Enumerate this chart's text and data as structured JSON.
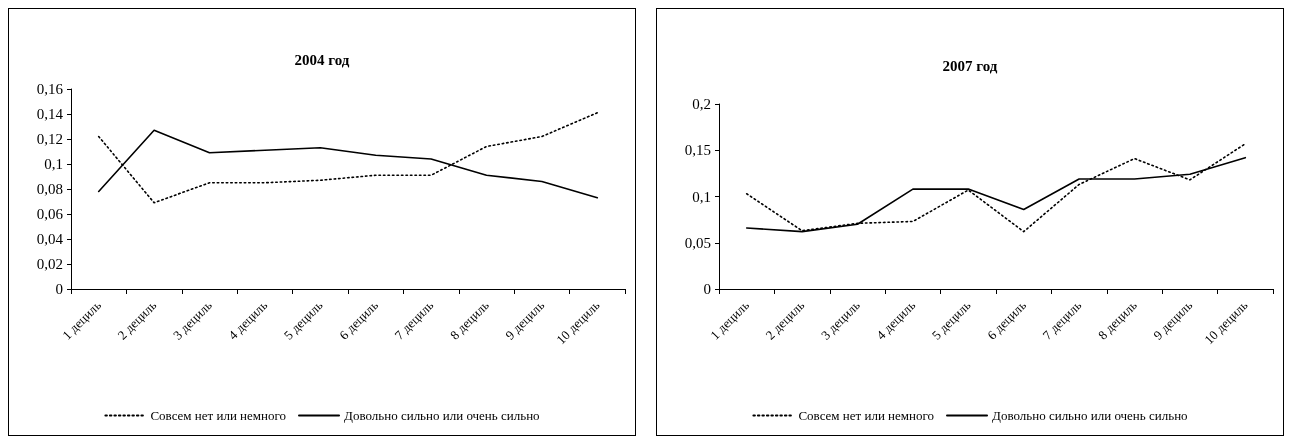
{
  "chart_data": [
    {
      "type": "line",
      "title": "2004 год",
      "categories": [
        "1 дециль",
        "2 дециль",
        "3 дециль",
        "4 дециль",
        "5 дециль",
        "6 дециль",
        "7 дециль",
        "8 дециль",
        "9 дециль",
        "10 дециль"
      ],
      "series": [
        {
          "name": "Совсем нет или немного",
          "color": "#000000",
          "line_style": "dotted",
          "values": [
            0.122,
            0.069,
            0.085,
            0.085,
            0.087,
            0.091,
            0.091,
            0.114,
            0.122,
            0.141
          ]
        },
        {
          "name": "Довольно сильно или очень сильно",
          "color": "#000000",
          "line_style": "solid",
          "values": [
            0.078,
            0.127,
            0.109,
            0.111,
            0.113,
            0.107,
            0.104,
            0.091,
            0.086,
            0.073
          ]
        }
      ],
      "ylim": [
        0,
        0.16
      ],
      "yticks": [
        0,
        {
          "value": 0.02,
          "label": "0,02"
        },
        {
          "value": 0.04,
          "label": "0,04"
        },
        {
          "value": 0.06,
          "label": "0,06"
        },
        {
          "value": 0.08,
          "label": "0,08"
        },
        {
          "value": 0.1,
          "label": "0,1"
        },
        {
          "value": 0.12,
          "label": "0,12"
        },
        {
          "value": 0.14,
          "label": "0,14"
        },
        {
          "value": 0.16,
          "label": "0,16"
        }
      ],
      "grid": false,
      "legend": "bottom",
      "marker": "none"
    },
    {
      "type": "line",
      "title": "2007 год",
      "categories": [
        "1 дециль",
        "2 дециль",
        "3 дециль",
        "4 дециль",
        "5 дециль",
        "6 дециль",
        "7 дециль",
        "8 дециль",
        "9 дециль",
        "10 дециль"
      ],
      "series": [
        {
          "name": "Совсем нет или немного",
          "color": "#000000",
          "line_style": "dotted",
          "values": [
            0.103,
            0.063,
            0.071,
            0.073,
            0.107,
            0.062,
            0.113,
            0.141,
            0.118,
            0.157
          ]
        },
        {
          "name": "Довольно сильно или очень сильно",
          "color": "#000000",
          "line_style": "solid",
          "values": [
            0.066,
            0.062,
            0.07,
            0.108,
            0.108,
            0.086,
            0.119,
            0.119,
            0.124,
            0.142
          ]
        }
      ],
      "ylim": [
        0,
        0.2
      ],
      "yticks": [
        0,
        {
          "value": 0.05,
          "label": "0,05"
        },
        {
          "value": 0.1,
          "label": "0,1"
        },
        {
          "value": 0.15,
          "label": "0,15"
        },
        {
          "value": 0.2,
          "label": "0,2"
        }
      ],
      "grid": false,
      "legend": "bottom",
      "marker": "none"
    }
  ]
}
